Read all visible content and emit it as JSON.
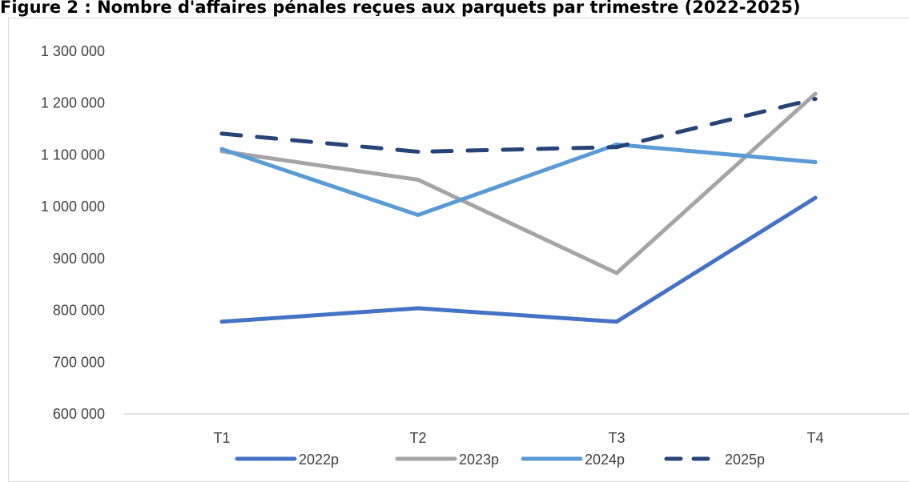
{
  "chart_data": {
    "type": "line",
    "title": "Figure 2 : Nombre d'affaires pénales reçues aux parquets par trimestre (2022-2025)",
    "categories": [
      "T1",
      "T2",
      "T3",
      "T4"
    ],
    "y_ticks": [
      "600 000",
      "700 000",
      "800 000",
      "900 000",
      "1 000 000",
      "1 100 000",
      "1 200 000",
      "1 300 000"
    ],
    "ylim": [
      600000,
      1300000
    ],
    "grid": "horizontal baseline only",
    "legend_position": "bottom",
    "series": [
      {
        "name": "2022p",
        "values": [
          778000,
          804000,
          778000,
          1017000
        ],
        "color": "#4472C4",
        "style": "solid"
      },
      {
        "name": "2023p",
        "values": [
          1107000,
          1052000,
          872000,
          1218000
        ],
        "color": "#A5A5A5",
        "style": "solid"
      },
      {
        "name": "2024p",
        "values": [
          1111000,
          984000,
          1120000,
          1086000
        ],
        "color": "#5B9BD5",
        "style": "solid"
      },
      {
        "name": "2025p",
        "values": [
          1141000,
          1106000,
          1115000,
          1208000
        ],
        "color": "#264478",
        "style": "dashed"
      }
    ]
  }
}
